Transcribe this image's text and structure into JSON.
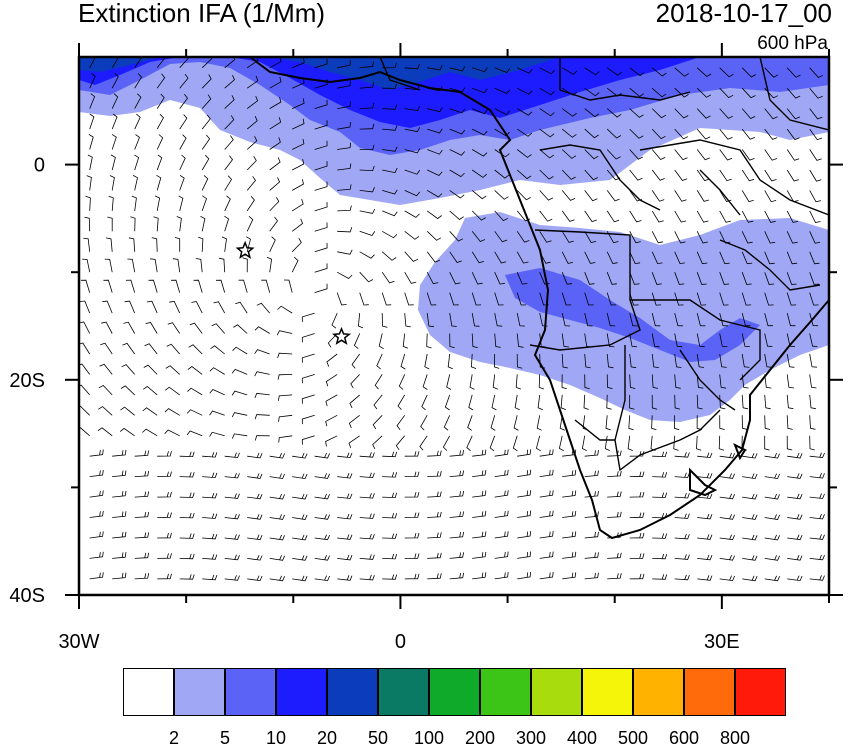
{
  "title": "Extinction IFA (1/Mm)",
  "datetime": "2018-10-17_00",
  "level": "600 hPa",
  "axes": {
    "lon_min": -30,
    "lon_max": 40,
    "lat_min": -40,
    "lat_max": 10,
    "x_tick_labels": [
      {
        "lon": -30,
        "label": "30W"
      },
      {
        "lon": 0,
        "label": "0"
      },
      {
        "lon": 30,
        "label": "30E"
      }
    ],
    "y_tick_labels": [
      {
        "lat": 0,
        "label": "0"
      },
      {
        "lat": -20,
        "label": "20S"
      },
      {
        "lat": -40,
        "label": "40S"
      }
    ],
    "minor_lon_ticks": [
      -20,
      -10,
      10,
      20,
      40
    ],
    "minor_lat_ticks": [
      -10,
      -30
    ]
  },
  "markers": [
    {
      "name": "star",
      "lon": -14.5,
      "lat": -8
    },
    {
      "name": "star",
      "lon": -5.5,
      "lat": -16
    }
  ],
  "colorbar": {
    "colors": [
      "#ffffff",
      "#a0a8f5",
      "#5a63f5",
      "#1c1cff",
      "#0a3cbb",
      "#0a7a64",
      "#10aa2a",
      "#3cc416",
      "#a8dc0c",
      "#f5f50a",
      "#ffb300",
      "#ff6a0a",
      "#ff1a0a"
    ],
    "labels": [
      "2",
      "5",
      "10",
      "20",
      "50",
      "100",
      "200",
      "300",
      "400",
      "500",
      "600",
      "800"
    ]
  },
  "colors": {
    "light": "#a0a8f5",
    "medium": "#5a63f5",
    "strong": "#1c1cff",
    "dark": "#0a3cbb"
  }
}
